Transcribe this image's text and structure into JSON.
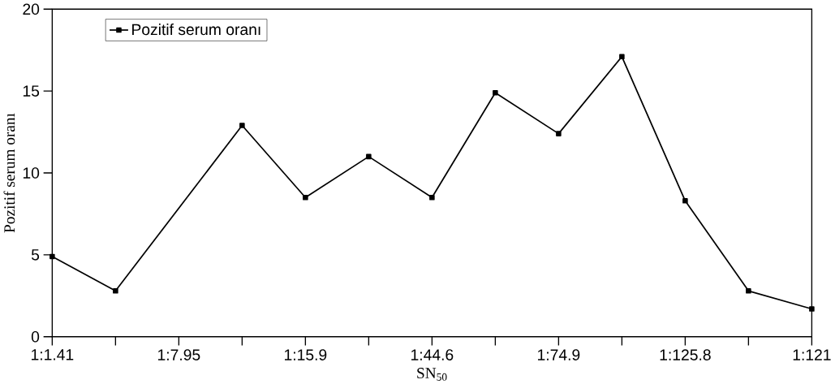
{
  "chart_data": {
    "type": "line",
    "xlabel": "SN$_{50}$",
    "ylabel": "Pozitif  serum  oranı",
    "categories": [
      "1:1.41",
      null,
      "1:7.95",
      null,
      "1:15.9",
      null,
      "1:44.6",
      null,
      "1:74.9",
      null,
      "1:125.8",
      null,
      "1:121"
    ],
    "series": [
      {
        "name": "Pozitif serum oranı",
        "color": "#000000",
        "values": [
          4.9,
          2.8,
          null,
          12.9,
          8.5,
          11.0,
          8.5,
          14.9,
          12.4,
          17.1,
          8.3,
          2.8,
          1.7
        ]
      }
    ],
    "ylim": [
      0,
      20
    ],
    "yticks": [
      0,
      5,
      10,
      15,
      20
    ],
    "legend": "top left",
    "marker": "square",
    "line_style": "solid",
    "grid": false
  }
}
